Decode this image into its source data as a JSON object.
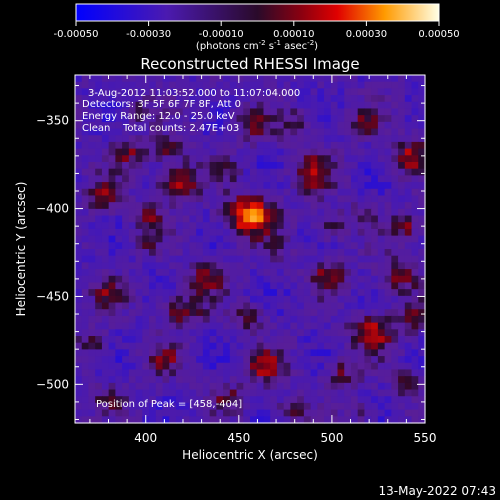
{
  "chart_data": {
    "type": "heatmap",
    "title": "Reconstructed RHESSI Image",
    "xlabel": "Heliocentric X (arcsec)",
    "ylabel": "Heliocentric Y (arcsec)",
    "xlim": [
      362,
      550
    ],
    "ylim": [
      -522,
      -324
    ],
    "x_ticks": [
      400,
      450,
      500,
      550
    ],
    "y_ticks": [
      -350,
      -400,
      -450,
      -500
    ],
    "colorbar": {
      "range": [
        -0.0005,
        0.0005
      ],
      "tick_labels": [
        "-0.00050",
        "-0.00030",
        "-0.00010",
        "0.00010",
        "0.00030",
        "0.00050"
      ],
      "units_label": "(photons cm",
      "units_exp1": "-2",
      "units_s": " s",
      "units_exp2": "-1",
      "units_asec": " asec",
      "units_exp3": "-2",
      "units_close": ")"
    },
    "annotations": {
      "time_range": "3-Aug-2012 11:03:52.000 to 11:07:04.000",
      "detectors": "Detectors: 3F 5F 6F 7F 8F, Att 0",
      "energy": "Energy Range: 12.0 - 25.0 keV",
      "method": "Clean",
      "counts": "Total counts: 2.47E+03",
      "peak": "Position of Peak = [458,-404]"
    },
    "footer_timestamp": "13-May-2022 07:43",
    "grid": false,
    "peak_position": [
      458,
      -404
    ],
    "sources": [
      {
        "x": 456,
        "y": -404,
        "sx": 9,
        "sy": 8,
        "a": 0.00055
      },
      {
        "x": 418,
        "y": -385,
        "sx": 8,
        "sy": 7,
        "a": 0.00038
      },
      {
        "x": 390,
        "y": -368,
        "sx": 6,
        "sy": 6,
        "a": 0.00028
      },
      {
        "x": 412,
        "y": -366,
        "sx": 7,
        "sy": 5,
        "a": 0.00024
      },
      {
        "x": 377,
        "y": -393,
        "sx": 6,
        "sy": 7,
        "a": 0.00026
      },
      {
        "x": 402,
        "y": -404,
        "sx": 6,
        "sy": 6,
        "a": 0.00022
      },
      {
        "x": 458,
        "y": -353,
        "sx": 7,
        "sy": 6,
        "a": 0.00026
      },
      {
        "x": 480,
        "y": -352,
        "sx": 6,
        "sy": 6,
        "a": 0.0002
      },
      {
        "x": 490,
        "y": -380,
        "sx": 8,
        "sy": 8,
        "a": 0.0003
      },
      {
        "x": 500,
        "y": -410,
        "sx": 6,
        "sy": 6,
        "a": 0.00022
      },
      {
        "x": 498,
        "y": -438,
        "sx": 7,
        "sy": 6,
        "a": 0.00026
      },
      {
        "x": 519,
        "y": -350,
        "sx": 6,
        "sy": 6,
        "a": 0.00022
      },
      {
        "x": 542,
        "y": -370,
        "sx": 7,
        "sy": 7,
        "a": 0.00034
      },
      {
        "x": 540,
        "y": -410,
        "sx": 6,
        "sy": 6,
        "a": 0.00028
      },
      {
        "x": 536,
        "y": -438,
        "sx": 7,
        "sy": 7,
        "a": 0.0003
      },
      {
        "x": 545,
        "y": -462,
        "sx": 6,
        "sy": 6,
        "a": 0.00024
      },
      {
        "x": 522,
        "y": -470,
        "sx": 8,
        "sy": 7,
        "a": 0.00038
      },
      {
        "x": 505,
        "y": -494,
        "sx": 6,
        "sy": 6,
        "a": 0.00024
      },
      {
        "x": 540,
        "y": -500,
        "sx": 5,
        "sy": 5,
        "a": 0.00026
      },
      {
        "x": 432,
        "y": -440,
        "sx": 7,
        "sy": 6,
        "a": 0.00028
      },
      {
        "x": 420,
        "y": -458,
        "sx": 8,
        "sy": 6,
        "a": 0.00032
      },
      {
        "x": 380,
        "y": -448,
        "sx": 6,
        "sy": 6,
        "a": 0.00024
      },
      {
        "x": 372,
        "y": -476,
        "sx": 6,
        "sy": 6,
        "a": 0.00022
      },
      {
        "x": 410,
        "y": -486,
        "sx": 6,
        "sy": 6,
        "a": 0.00024
      },
      {
        "x": 455,
        "y": -462,
        "sx": 6,
        "sy": 5,
        "a": 0.00022
      },
      {
        "x": 465,
        "y": -490,
        "sx": 7,
        "sy": 7,
        "a": 0.00032
      },
      {
        "x": 445,
        "y": -508,
        "sx": 6,
        "sy": 5,
        "a": 0.00024
      },
      {
        "x": 380,
        "y": -508,
        "sx": 6,
        "sy": 5,
        "a": 0.0002
      },
      {
        "x": 478,
        "y": -515,
        "sx": 6,
        "sy": 5,
        "a": 0.00022
      },
      {
        "x": 515,
        "y": -515,
        "sx": 5,
        "sy": 5,
        "a": 0.00018
      },
      {
        "x": 470,
        "y": -425,
        "sx": 5,
        "sy": 5,
        "a": 0.00016
      },
      {
        "x": 400,
        "y": -420,
        "sx": 5,
        "sy": 5,
        "a": 0.00014
      },
      {
        "x": 443,
        "y": -378,
        "sx": 5,
        "sy": 5,
        "a": 0.00016
      },
      {
        "x": 518,
        "y": -402,
        "sx": 5,
        "sy": 5,
        "a": 0.00014
      },
      {
        "x": 395,
        "y": -345,
        "sx": 5,
        "sy": 5,
        "a": 0.00016
      }
    ],
    "background_level": -0.00022
  }
}
